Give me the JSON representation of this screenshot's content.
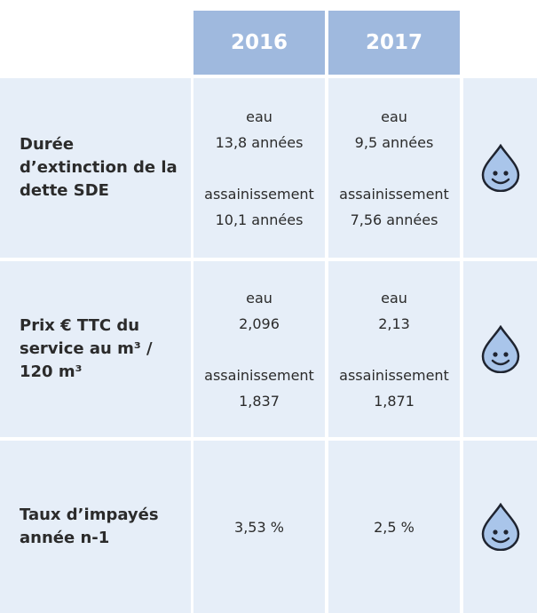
{
  "header": {
    "columns": [
      "2016",
      "2017"
    ]
  },
  "rows": [
    {
      "label": [
        "Durée",
        "d’extinction de la",
        "dette SDE"
      ],
      "cells": [
        [
          [
            "eau",
            "13,8 années"
          ],
          [
            "assainissement",
            "10,1 années"
          ]
        ],
        [
          [
            "eau",
            "9,5 années"
          ],
          [
            "assainissement",
            "7,56 années"
          ]
        ]
      ]
    },
    {
      "label": [
        "Prix  € TTC du",
        "service au m³ /",
        "120 m³"
      ],
      "cells": [
        [
          [
            "eau",
            "2,096"
          ],
          [
            "assainissement",
            "1,837"
          ]
        ],
        [
          [
            "eau",
            "2,13"
          ],
          [
            "assainissement",
            "1,871"
          ]
        ]
      ]
    },
    {
      "label": [
        "Taux d’impayés",
        "année n-1"
      ],
      "cells": [
        [
          [
            "3,53 %"
          ]
        ],
        [
          [
            "2,5 %"
          ]
        ]
      ]
    }
  ]
}
